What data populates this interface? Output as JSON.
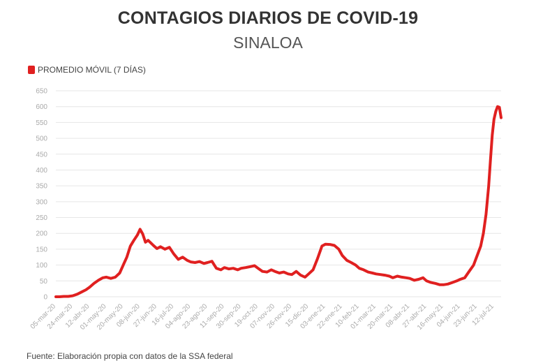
{
  "chart_data": {
    "type": "line",
    "title": "CONTAGIOS DIARIOS DE COVID-19",
    "subtitle": "SINALOA",
    "source": "Fuente: Elaboración propia con datos de la SSA federal",
    "legend_position": "top-left",
    "grid": true,
    "ylim": [
      0,
      650
    ],
    "y_ticks": [
      0,
      50,
      100,
      150,
      200,
      250,
      300,
      350,
      400,
      450,
      500,
      550,
      600,
      650
    ],
    "y_tick_labels": [
      "0",
      "50",
      "100",
      "150",
      "200",
      "250",
      "300",
      "350",
      "400",
      "450",
      "500",
      "550",
      "600",
      "650"
    ],
    "x_tick_labels": [
      "05-mar-20",
      "24-mar-20",
      "12-abr-20",
      "01-may-20",
      "20-may-20",
      "08-jun-20",
      "27-jun-20",
      "16-jul-20",
      "04-ago-20",
      "23-ago-20",
      "11-sep-20",
      "30-sep-20",
      "19-oct-20",
      "07-nov-20",
      "26-nov-20",
      "15-dic-20",
      "03-ene-21",
      "22-ene-21",
      "10-feb-21",
      "01-mar-21",
      "20-mar-21",
      "08-abr-21",
      "27-abr-21",
      "16-may-21",
      "04-jun-21",
      "23-jun-21",
      "12-jul-21"
    ],
    "colors": {
      "line": "#e02020",
      "grid": "#e6e6e6",
      "ticks": "#aaaaaa"
    },
    "series": [
      {
        "name": "PROMEDIO MÓVIL (7 DÍAS)",
        "x": [
          "05-mar-20",
          "09-mar-20",
          "14-mar-20",
          "19-mar-20",
          "24-mar-20",
          "29-mar-20",
          "03-abr-20",
          "08-abr-20",
          "12-abr-20",
          "17-abr-20",
          "22-abr-20",
          "27-abr-20",
          "01-may-20",
          "06-may-20",
          "11-may-20",
          "16-may-20",
          "20-may-20",
          "24-may-20",
          "28-may-20",
          "01-jun-20",
          "05-jun-20",
          "08-jun-20",
          "11-jun-20",
          "14-jun-20",
          "17-jun-20",
          "20-jun-20",
          "23-jun-20",
          "27-jun-20",
          "01-jul-20",
          "06-jul-20",
          "11-jul-20",
          "16-jul-20",
          "21-jul-20",
          "26-jul-20",
          "31-jul-20",
          "04-ago-20",
          "09-ago-20",
          "14-ago-20",
          "19-ago-20",
          "23-ago-20",
          "28-ago-20",
          "02-sep-20",
          "07-sep-20",
          "11-sep-20",
          "16-sep-20",
          "21-sep-20",
          "26-sep-20",
          "30-sep-20",
          "05-oct-20",
          "10-oct-20",
          "15-oct-20",
          "19-oct-20",
          "24-oct-20",
          "29-oct-20",
          "03-nov-20",
          "07-nov-20",
          "12-nov-20",
          "17-nov-20",
          "22-nov-20",
          "26-nov-20",
          "01-dic-20",
          "06-dic-20",
          "11-dic-20",
          "15-dic-20",
          "20-dic-20",
          "25-dic-20",
          "30-dic-20",
          "03-ene-21",
          "08-ene-21",
          "13-ene-21",
          "18-ene-21",
          "22-ene-21",
          "27-ene-21",
          "01-feb-21",
          "06-feb-21",
          "10-feb-21",
          "15-feb-21",
          "20-feb-21",
          "25-feb-21",
          "01-mar-21",
          "06-mar-21",
          "11-mar-21",
          "16-mar-21",
          "20-mar-21",
          "25-mar-21",
          "30-mar-21",
          "04-abr-21",
          "08-abr-21",
          "13-abr-21",
          "18-abr-21",
          "23-abr-21",
          "27-abr-21",
          "02-may-21",
          "07-may-21",
          "12-may-21",
          "16-may-21",
          "21-may-21",
          "26-may-21",
          "31-may-21",
          "04-jun-21",
          "09-jun-21",
          "14-jun-21",
          "19-jun-21",
          "23-jun-21",
          "27-jun-21",
          "30-jun-21",
          "03-jul-21",
          "06-jul-21",
          "08-jul-21",
          "10-jul-21",
          "12-jul-21",
          "14-jul-21",
          "16-jul-21",
          "18-jul-21",
          "20-jul-21"
        ],
        "values": [
          0,
          0,
          1,
          1,
          3,
          8,
          15,
          22,
          30,
          42,
          52,
          60,
          62,
          58,
          62,
          75,
          100,
          125,
          160,
          178,
          195,
          213,
          198,
          172,
          178,
          170,
          162,
          152,
          158,
          150,
          156,
          135,
          118,
          125,
          115,
          110,
          108,
          111,
          105,
          108,
          112,
          90,
          85,
          92,
          88,
          90,
          85,
          90,
          92,
          95,
          98,
          90,
          80,
          78,
          85,
          80,
          75,
          78,
          72,
          70,
          80,
          68,
          62,
          72,
          85,
          120,
          160,
          166,
          165,
          162,
          150,
          130,
          115,
          108,
          100,
          90,
          85,
          78,
          75,
          72,
          70,
          68,
          65,
          60,
          65,
          62,
          60,
          58,
          52,
          55,
          60,
          50,
          45,
          42,
          38,
          38,
          40,
          45,
          50,
          55,
          60,
          80,
          100,
          130,
          160,
          200,
          260,
          350,
          430,
          510,
          560,
          585,
          600,
          598,
          565
        ]
      }
    ]
  }
}
